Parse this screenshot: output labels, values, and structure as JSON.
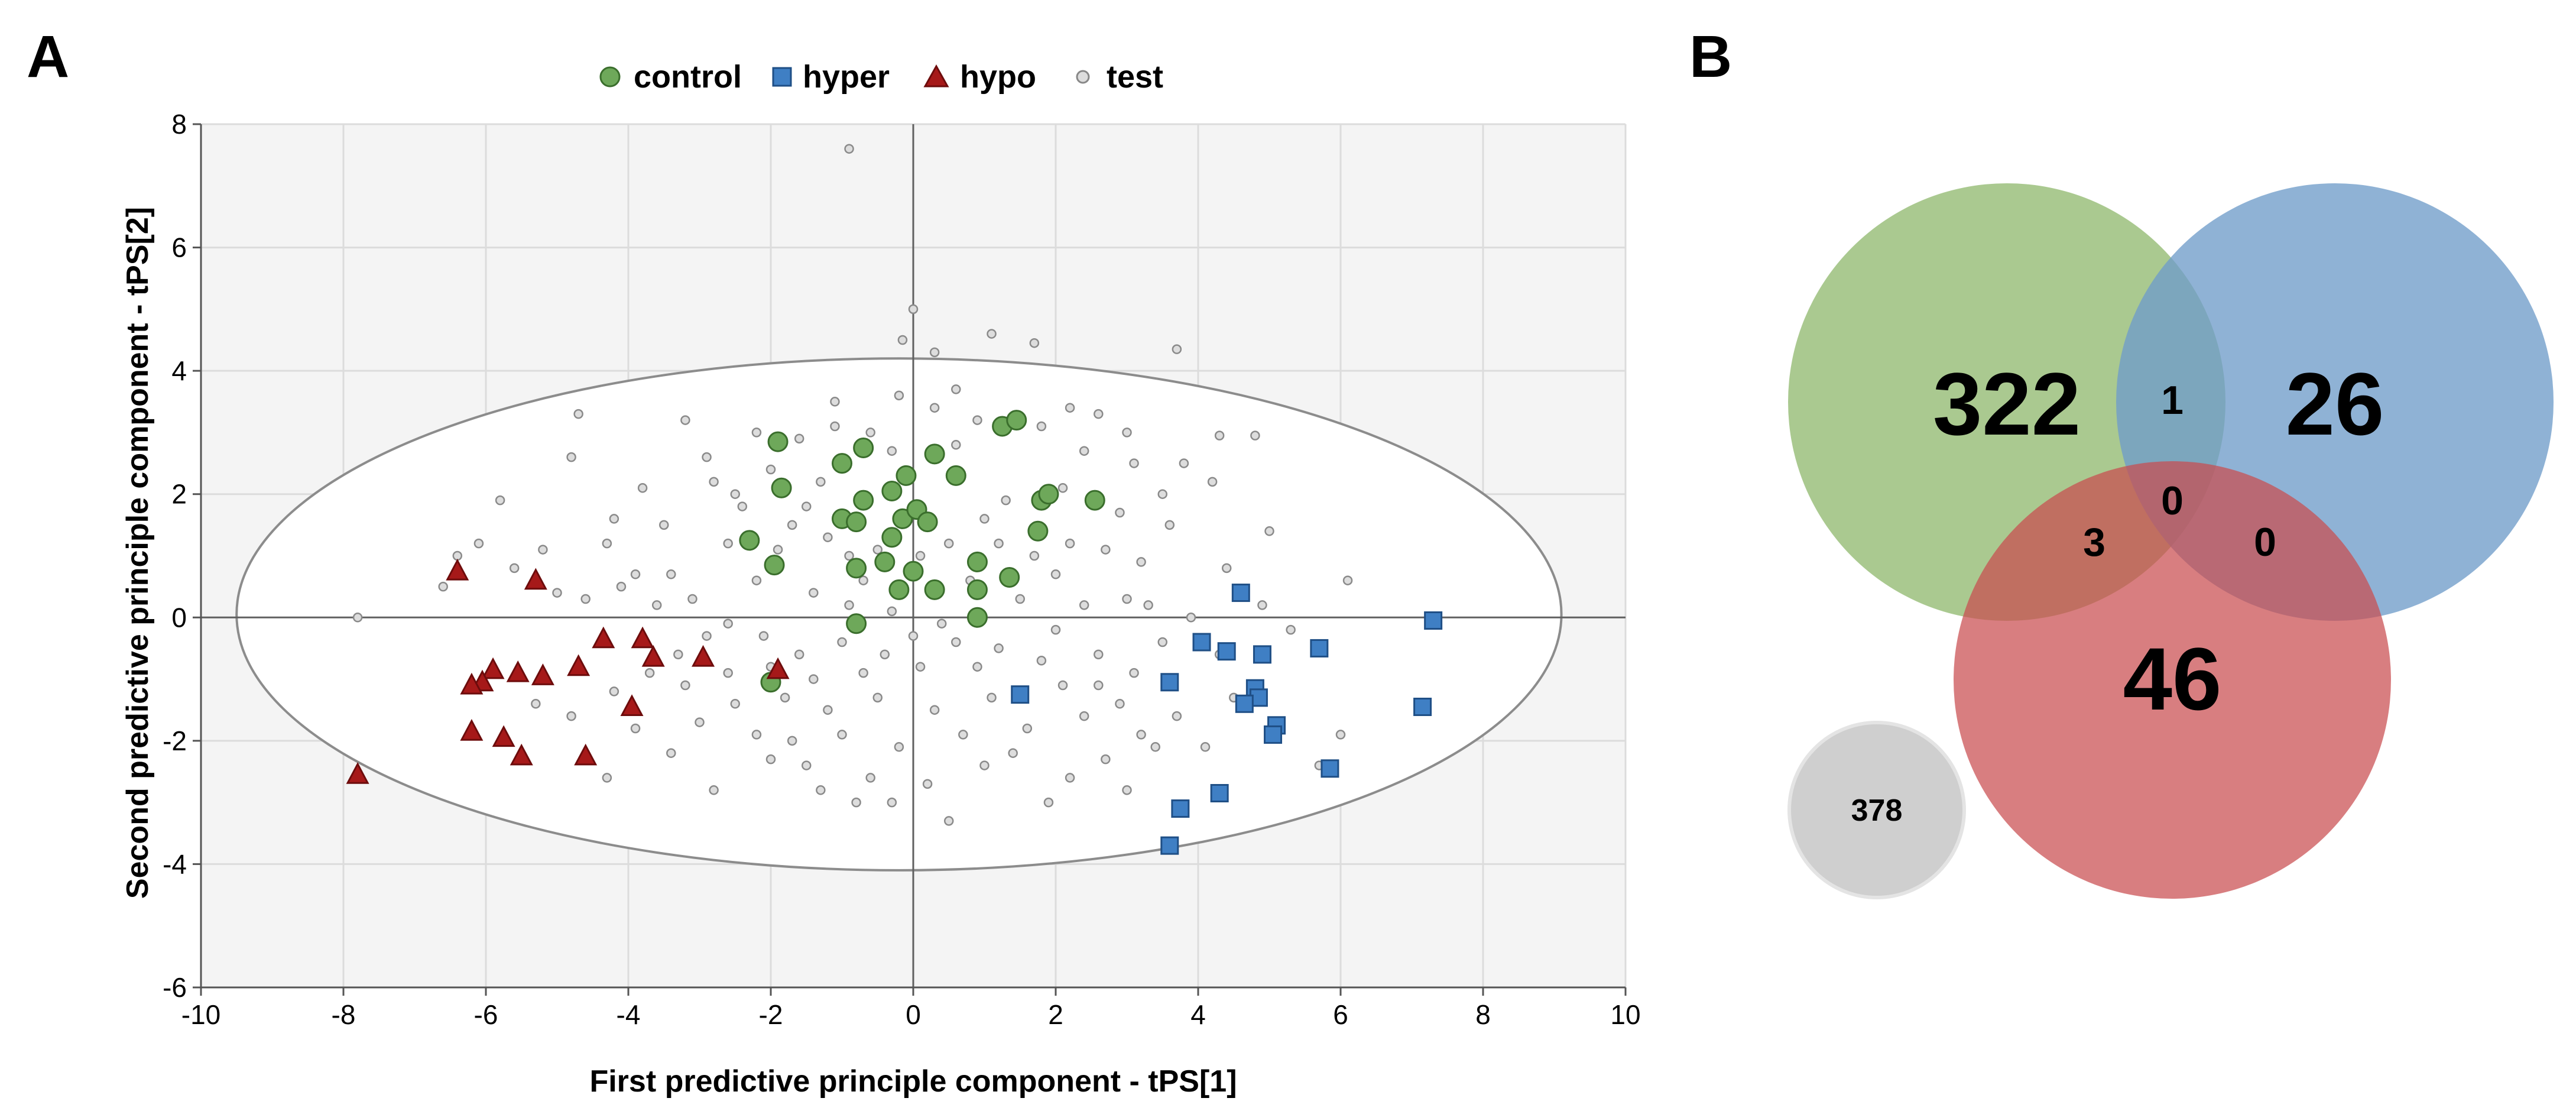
{
  "panels": {
    "a_label": "A",
    "b_label": "B"
  },
  "colors": {
    "control": "#6ea85a",
    "hyper": "#3f7fc4",
    "hypo": "#a61919",
    "test": "#c8c8c8",
    "venn_control": "#9bbf7c",
    "venn_hyper": "#6f9cc9",
    "venn_hypo": "#c94c4f",
    "venn_other": "#cfcfcf"
  },
  "chart_data": [
    {
      "type": "scatter",
      "title": "",
      "xlabel": "First predictive principle component - tPS[1]",
      "ylabel": "Second predictive principle component - tPS[2]",
      "xlim": [
        -10,
        10
      ],
      "ylim": [
        -6,
        8
      ],
      "xticks": [
        -10,
        -8,
        -6,
        -4,
        -2,
        0,
        2,
        4,
        6,
        8,
        10
      ],
      "yticks": [
        -6,
        -4,
        -2,
        0,
        2,
        4,
        6,
        8
      ],
      "grid": true,
      "legend_position": "top-center",
      "ellipse": {
        "center": [
          -0.2,
          0.05
        ],
        "rx": 9.3,
        "ry": 4.15
      },
      "series": [
        {
          "name": "control",
          "marker": "circle",
          "points": [
            [
              -1.9,
              2.85
            ],
            [
              -0.7,
              2.75
            ],
            [
              -1.0,
              2.5
            ],
            [
              0.3,
              2.65
            ],
            [
              1.25,
              3.1
            ],
            [
              1.45,
              3.2
            ],
            [
              -1.85,
              2.1
            ],
            [
              -0.3,
              2.05
            ],
            [
              -0.1,
              2.3
            ],
            [
              0.6,
              2.3
            ],
            [
              1.8,
              1.9
            ],
            [
              1.9,
              2.0
            ],
            [
              2.55,
              1.9
            ],
            [
              -0.7,
              1.9
            ],
            [
              -1.0,
              1.6
            ],
            [
              -0.8,
              1.55
            ],
            [
              -0.15,
              1.6
            ],
            [
              0.05,
              1.75
            ],
            [
              0.2,
              1.55
            ],
            [
              1.75,
              1.4
            ],
            [
              -2.3,
              1.25
            ],
            [
              -0.3,
              1.3
            ],
            [
              -1.95,
              0.85
            ],
            [
              -0.8,
              0.8
            ],
            [
              -0.4,
              0.9
            ],
            [
              0.0,
              0.75
            ],
            [
              0.9,
              0.9
            ],
            [
              1.35,
              0.65
            ],
            [
              -0.2,
              0.45
            ],
            [
              0.3,
              0.45
            ],
            [
              0.9,
              0.45
            ],
            [
              0.9,
              0.0
            ],
            [
              -0.8,
              -0.1
            ],
            [
              -2.0,
              -1.05
            ]
          ]
        },
        {
          "name": "hyper",
          "marker": "square",
          "points": [
            [
              4.6,
              0.4
            ],
            [
              7.3,
              -0.05
            ],
            [
              4.05,
              -0.4
            ],
            [
              4.4,
              -0.55
            ],
            [
              4.9,
              -0.6
            ],
            [
              5.7,
              -0.5
            ],
            [
              3.6,
              -1.05
            ],
            [
              4.8,
              -1.15
            ],
            [
              4.85,
              -1.3
            ],
            [
              4.65,
              -1.4
            ],
            [
              1.5,
              -1.25
            ],
            [
              5.1,
              -1.75
            ],
            [
              5.05,
              -1.9
            ],
            [
              7.15,
              -1.45
            ],
            [
              5.85,
              -2.45
            ],
            [
              4.3,
              -2.85
            ],
            [
              3.75,
              -3.1
            ],
            [
              3.6,
              -3.7
            ]
          ]
        },
        {
          "name": "hypo",
          "marker": "triangle",
          "points": [
            [
              -6.4,
              0.75
            ],
            [
              -5.3,
              0.6
            ],
            [
              -4.35,
              -0.35
            ],
            [
              -3.8,
              -0.35
            ],
            [
              -3.65,
              -0.65
            ],
            [
              -2.95,
              -0.65
            ],
            [
              -4.7,
              -0.8
            ],
            [
              -5.9,
              -0.85
            ],
            [
              -5.55,
              -0.9
            ],
            [
              -5.2,
              -0.95
            ],
            [
              -6.05,
              -1.05
            ],
            [
              -6.2,
              -1.1
            ],
            [
              -1.9,
              -0.85
            ],
            [
              -3.95,
              -1.45
            ],
            [
              -6.2,
              -1.85
            ],
            [
              -5.75,
              -1.95
            ],
            [
              -5.5,
              -2.25
            ],
            [
              -4.6,
              -2.25
            ],
            [
              -7.8,
              -2.55
            ]
          ]
        },
        {
          "name": "test",
          "marker": "circle-small",
          "points": [
            [
              -0.9,
              7.6
            ],
            [
              0.0,
              5.0
            ],
            [
              -0.15,
              4.5
            ],
            [
              0.3,
              4.3
            ],
            [
              1.1,
              4.6
            ],
            [
              1.7,
              4.45
            ],
            [
              3.7,
              4.35
            ],
            [
              -4.7,
              3.3
            ],
            [
              -3.2,
              3.2
            ],
            [
              -4.8,
              2.6
            ],
            [
              -5.8,
              1.9
            ],
            [
              -6.4,
              1.0
            ],
            [
              -6.6,
              0.5
            ],
            [
              -7.8,
              0.0
            ],
            [
              -5.2,
              1.1
            ],
            [
              -3.9,
              0.7
            ],
            [
              -3.3,
              -0.6
            ],
            [
              -2.6,
              -0.9
            ],
            [
              -4.2,
              -1.2
            ],
            [
              -3.0,
              -1.7
            ],
            [
              -4.3,
              -2.6
            ],
            [
              -2.8,
              -2.8
            ],
            [
              -2.0,
              -2.3
            ],
            [
              -1.7,
              -2.0
            ],
            [
              -0.8,
              -3.0
            ],
            [
              0.2,
              -2.7
            ],
            [
              1.0,
              -2.4
            ],
            [
              2.2,
              -2.6
            ],
            [
              2.7,
              -2.3
            ],
            [
              3.4,
              -2.1
            ],
            [
              3.7,
              -1.6
            ],
            [
              4.1,
              -2.1
            ],
            [
              5.7,
              -2.4
            ],
            [
              6.0,
              -1.9
            ],
            [
              6.1,
              0.6
            ],
            [
              5.0,
              1.4
            ],
            [
              4.2,
              2.2
            ],
            [
              3.8,
              2.5
            ],
            [
              4.3,
              2.95
            ],
            [
              4.8,
              2.95
            ],
            [
              3.0,
              3.0
            ],
            [
              2.2,
              3.4
            ],
            [
              2.6,
              3.3
            ],
            [
              -2.8,
              2.2
            ],
            [
              -3.8,
              2.1
            ],
            [
              -4.2,
              1.6
            ],
            [
              -2.4,
              1.8
            ],
            [
              -1.5,
              1.8
            ],
            [
              -1.2,
              1.3
            ],
            [
              -0.5,
              1.1
            ],
            [
              0.5,
              1.2
            ],
            [
              1.0,
              1.6
            ],
            [
              1.2,
              1.2
            ],
            [
              1.7,
              1.0
            ],
            [
              2.2,
              1.2
            ],
            [
              2.7,
              1.1
            ],
            [
              3.2,
              0.9
            ],
            [
              3.6,
              1.5
            ],
            [
              4.4,
              0.8
            ],
            [
              3.0,
              0.3
            ],
            [
              2.4,
              0.2
            ],
            [
              2.0,
              -0.2
            ],
            [
              1.2,
              -0.5
            ],
            [
              0.6,
              -0.4
            ],
            [
              0.1,
              -0.8
            ],
            [
              -0.4,
              -0.6
            ],
            [
              -1.0,
              -0.4
            ],
            [
              -1.6,
              -0.6
            ],
            [
              -2.1,
              -0.3
            ],
            [
              -2.6,
              -0.1
            ],
            [
              -3.1,
              0.3
            ],
            [
              -3.6,
              0.2
            ],
            [
              -4.1,
              0.5
            ],
            [
              -2.2,
              0.6
            ],
            [
              -1.4,
              0.4
            ],
            [
              -0.9,
              0.2
            ],
            [
              -0.3,
              0.1
            ],
            [
              0.4,
              -0.1
            ],
            [
              1.5,
              0.3
            ],
            [
              2.6,
              -0.6
            ],
            [
              3.1,
              -0.9
            ],
            [
              2.9,
              -1.4
            ],
            [
              2.1,
              -1.1
            ],
            [
              1.1,
              -1.3
            ],
            [
              0.3,
              -1.5
            ],
            [
              -0.5,
              -1.3
            ],
            [
              -1.2,
              -1.5
            ],
            [
              -1.8,
              -1.3
            ],
            [
              -2.5,
              -1.4
            ],
            [
              -3.2,
              -1.1
            ],
            [
              -3.7,
              -0.9
            ],
            [
              -1.0,
              -1.9
            ],
            [
              -0.2,
              -2.1
            ],
            [
              0.7,
              -1.9
            ],
            [
              1.6,
              -1.8
            ],
            [
              2.4,
              -1.6
            ],
            [
              -1.5,
              -2.4
            ],
            [
              -0.6,
              -2.6
            ],
            [
              1.4,
              -2.2
            ],
            [
              3.2,
              -1.9
            ],
            [
              -2.2,
              -1.9
            ],
            [
              -3.4,
              -2.2
            ],
            [
              -3.9,
              -1.8
            ],
            [
              -4.8,
              -1.6
            ],
            [
              -5.3,
              -1.4
            ],
            [
              -4.6,
              0.3
            ],
            [
              -5.0,
              0.4
            ],
            [
              -5.6,
              0.8
            ],
            [
              -6.1,
              1.2
            ],
            [
              -4.3,
              1.2
            ],
            [
              -3.5,
              1.5
            ],
            [
              -2.9,
              2.6
            ],
            [
              -2.0,
              2.4
            ],
            [
              -1.6,
              2.9
            ],
            [
              -1.1,
              3.1
            ],
            [
              -0.6,
              3.0
            ],
            [
              0.3,
              3.4
            ],
            [
              0.9,
              3.2
            ],
            [
              1.8,
              3.1
            ],
            [
              2.4,
              2.7
            ],
            [
              3.1,
              2.5
            ],
            [
              3.5,
              2.0
            ],
            [
              2.9,
              1.7
            ],
            [
              0.6,
              2.8
            ],
            [
              -0.3,
              2.7
            ],
            [
              -1.3,
              2.2
            ],
            [
              -2.6,
              1.2
            ],
            [
              -1.9,
              1.1
            ],
            [
              -0.7,
              0.6
            ],
            [
              0.8,
              0.6
            ],
            [
              2.0,
              0.7
            ],
            [
              3.3,
              0.2
            ],
            [
              3.9,
              0.0
            ],
            [
              4.3,
              -0.6
            ],
            [
              3.5,
              -0.4
            ],
            [
              2.6,
              -1.1
            ],
            [
              1.8,
              -0.7
            ],
            [
              0.9,
              -0.8
            ],
            [
              0.0,
              -0.3
            ],
            [
              -0.7,
              -0.9
            ],
            [
              -1.4,
              -1.0
            ],
            [
              -2.0,
              -0.8
            ],
            [
              -2.9,
              -0.3
            ],
            [
              -3.4,
              0.7
            ],
            [
              -2.5,
              2.0
            ],
            [
              -1.7,
              1.5
            ],
            [
              -0.9,
              1.0
            ],
            [
              0.1,
              1.0
            ],
            [
              1.3,
              1.9
            ],
            [
              2.1,
              2.1
            ],
            [
              -0.2,
              3.6
            ],
            [
              0.6,
              3.7
            ],
            [
              -1.1,
              3.5
            ],
            [
              -2.2,
              3.0
            ],
            [
              4.9,
              0.2
            ],
            [
              5.3,
              -0.2
            ],
            [
              4.5,
              -1.3
            ],
            [
              3.0,
              -2.8
            ],
            [
              1.9,
              -3.0
            ],
            [
              0.5,
              -3.3
            ],
            [
              -0.3,
              -3.0
            ],
            [
              -1.3,
              -2.8
            ]
          ]
        }
      ]
    },
    {
      "type": "venn",
      "title": "",
      "sets": [
        "control",
        "hyper",
        "hypo"
      ],
      "regions": {
        "control_only": "322",
        "hyper_only": "26",
        "hypo_only": "46",
        "control_hyper": "1",
        "control_hypo": "3",
        "hyper_hypo": "0",
        "all_three": "0",
        "none": "378"
      }
    }
  ]
}
